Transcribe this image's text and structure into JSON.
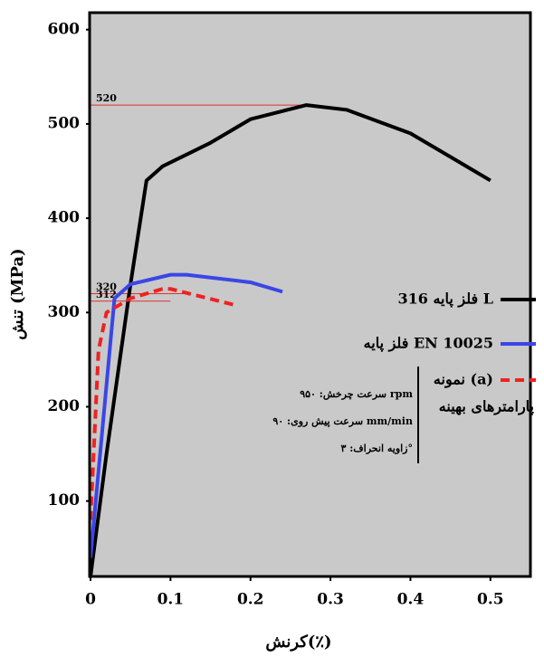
{
  "chart_data": {
    "type": "line",
    "y_label": "تنش (MPa)",
    "x_label": "کرنش(٪)",
    "xlim": [
      0,
      0.55
    ],
    "xticks": [
      0,
      0.1,
      0.2,
      0.3,
      0.4,
      0.5
    ],
    "ylim": [
      20,
      618
    ],
    "yticks": [
      100,
      200,
      300,
      400,
      500,
      600
    ],
    "background": "#c9c9c9",
    "series": [
      {
        "name": "فلز پایه 316 L",
        "color": "#000000",
        "dash": false,
        "x": [
          0,
          0.02,
          0.05,
          0.07,
          0.09,
          0.15,
          0.2,
          0.27,
          0.32,
          0.4,
          0.5
        ],
        "y": [
          20,
          150,
          330,
          440,
          455,
          480,
          505,
          520,
          515,
          490,
          440
        ]
      },
      {
        "name": "فلز پایه EN 10025",
        "color": "#3b46e6",
        "dash": false,
        "x": [
          0,
          0.03,
          0.05,
          0.1,
          0.12,
          0.2,
          0.24
        ],
        "y": [
          40,
          315,
          330,
          340,
          340,
          332,
          322
        ]
      },
      {
        "name": "نمونه (a)",
        "color": "#ee2222",
        "dash": true,
        "x": [
          0,
          0.01,
          0.02,
          0.05,
          0.09,
          0.1,
          0.18
        ],
        "y": [
          80,
          260,
          300,
          315,
          325,
          325,
          308
        ]
      }
    ],
    "ref_lines": [
      {
        "value": 520,
        "x": 0.27
      },
      {
        "value": 320,
        "x": 0.12
      },
      {
        "value": 312,
        "x": 0.1
      }
    ],
    "params_title": "پارامترهای بهینه",
    "params": [
      "سرعت چرخش: ۹۵۰ rpm",
      "سرعت پیش روی: ۹۰ mm/min",
      "زاویه انحراف: ۳°"
    ]
  }
}
